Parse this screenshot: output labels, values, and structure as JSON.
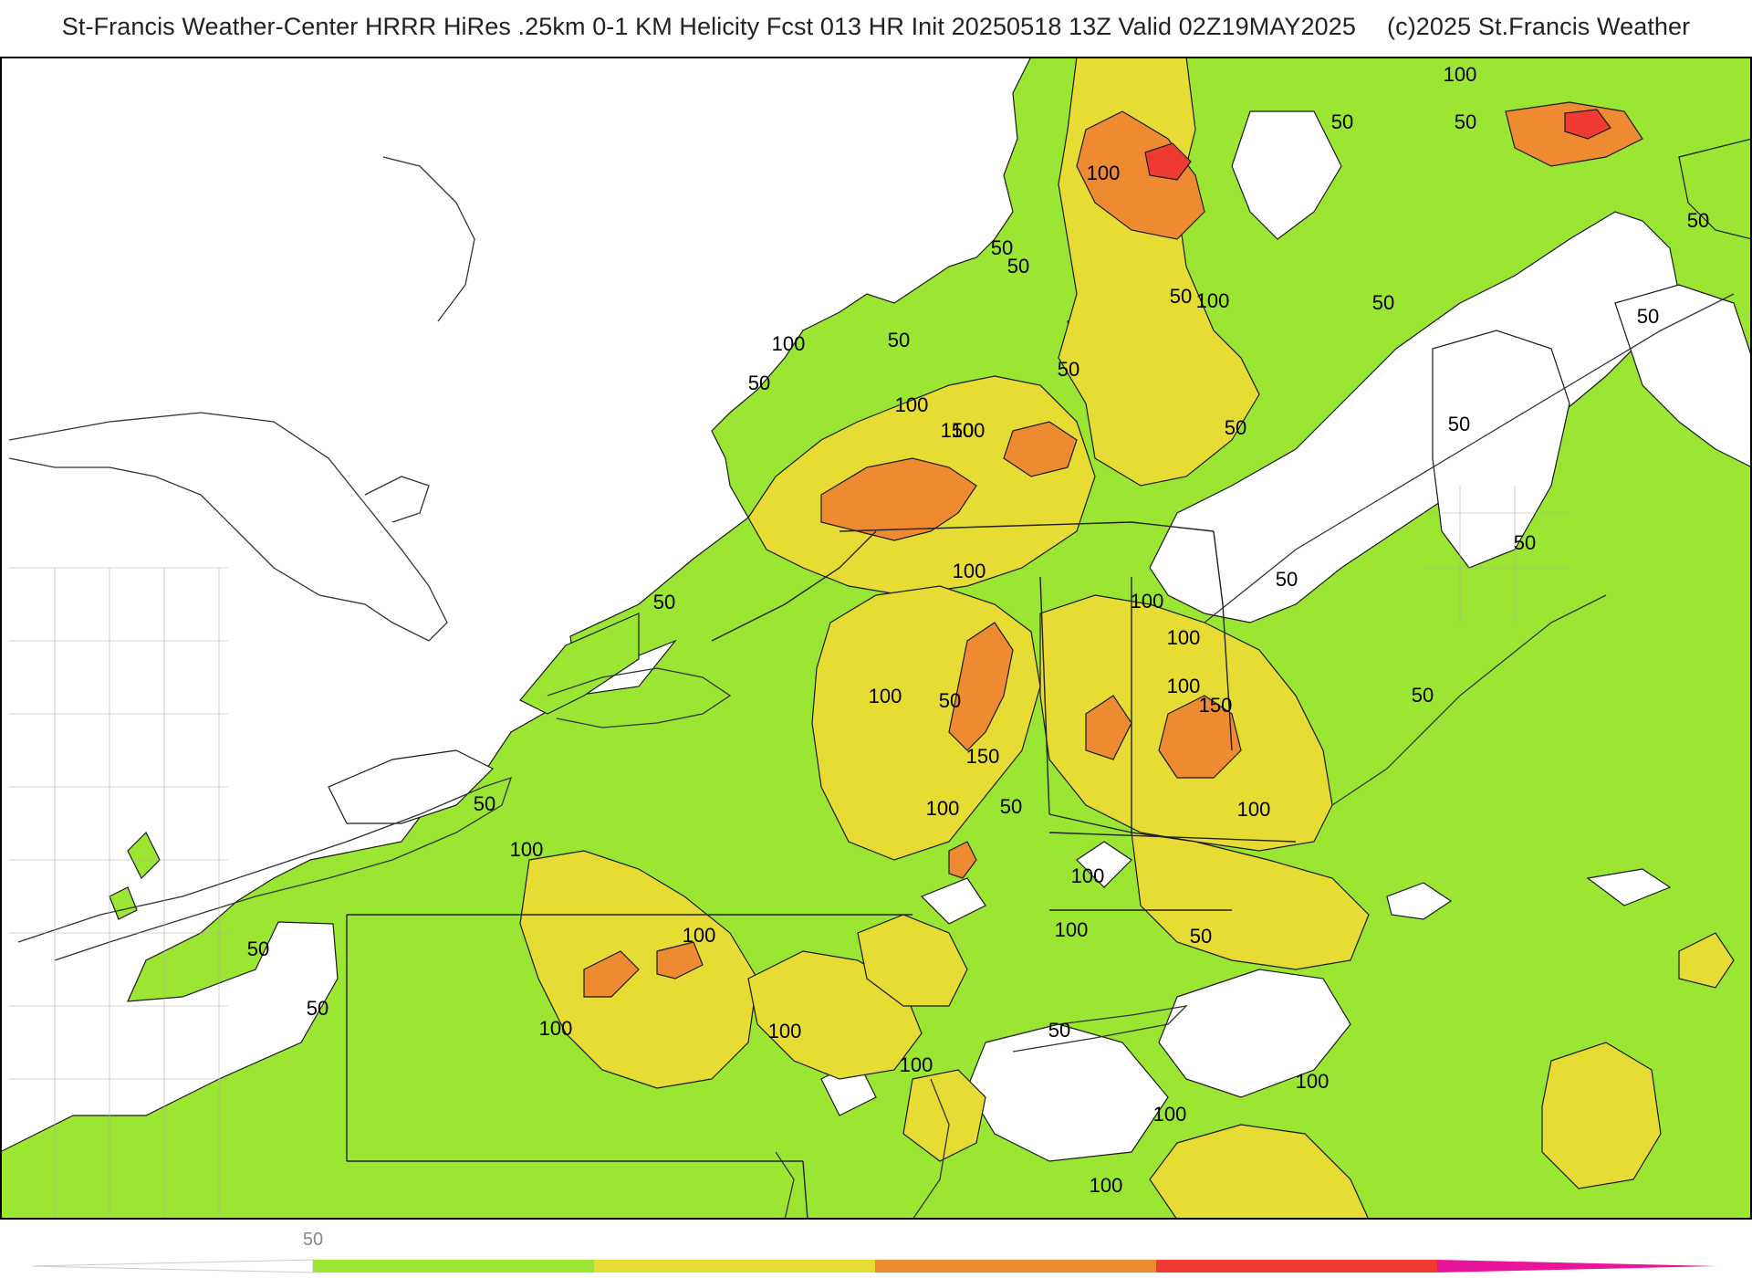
{
  "header": {
    "title": "St-Francis Weather-Center HRRR HiRes .25km 0-1 KM Helicity Fcst 013 HR Init 20250518 13Z  Valid 02Z19MAY2025",
    "copyright": "(c)2025 St.Francis Weather"
  },
  "map": {
    "field": "0-1 KM Helicity",
    "contour_labels": [
      {
        "text": "100"
      },
      {
        "text": "50"
      },
      {
        "text": "50"
      },
      {
        "text": "100"
      },
      {
        "text": "50"
      },
      {
        "text": "50"
      },
      {
        "text": "50"
      },
      {
        "text": "50"
      },
      {
        "text": "100"
      },
      {
        "text": "50"
      },
      {
        "text": "50"
      },
      {
        "text": "100"
      },
      {
        "text": "50"
      },
      {
        "text": "50"
      },
      {
        "text": "100"
      },
      {
        "text": "50"
      },
      {
        "text": "100"
      },
      {
        "text": "150"
      },
      {
        "text": "50"
      },
      {
        "text": "50"
      },
      {
        "text": "100"
      },
      {
        "text": "50"
      },
      {
        "text": "50"
      },
      {
        "text": "100"
      },
      {
        "text": "100"
      },
      {
        "text": "100"
      },
      {
        "text": "50"
      },
      {
        "text": "150"
      },
      {
        "text": "50"
      },
      {
        "text": "100"
      },
      {
        "text": "150"
      },
      {
        "text": "50"
      },
      {
        "text": "100"
      },
      {
        "text": "50"
      },
      {
        "text": "100"
      },
      {
        "text": "100"
      },
      {
        "text": "100"
      },
      {
        "text": "100"
      },
      {
        "text": "50"
      },
      {
        "text": "100"
      },
      {
        "text": "50"
      },
      {
        "text": "50"
      },
      {
        "text": "100"
      },
      {
        "text": "100"
      },
      {
        "text": "100"
      },
      {
        "text": "50"
      },
      {
        "text": "100"
      },
      {
        "text": "100"
      },
      {
        "text": "50"
      },
      {
        "text": "100"
      }
    ]
  },
  "colorbar": {
    "tick_label": "50",
    "segments": [
      {
        "color": "#ffffff"
      },
      {
        "color": "#9be633"
      },
      {
        "color": "#e6dc33"
      },
      {
        "color": "#ee8a30"
      },
      {
        "color": "#ee3a30"
      },
      {
        "color": "#e8149a"
      }
    ]
  },
  "colors": {
    "level_50": "#9be633",
    "level_100": "#e6dc33",
    "level_150": "#ee8a30",
    "level_200": "#ee3a30",
    "level_250": "#e8149a"
  }
}
